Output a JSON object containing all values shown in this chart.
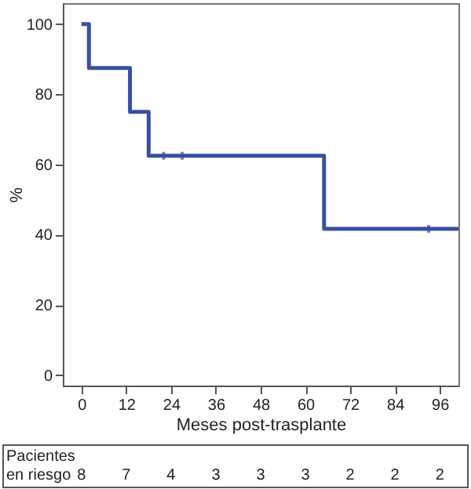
{
  "chart_data": {
    "type": "step",
    "xlabel": "Meses post-trasplante",
    "ylabel": "%",
    "series": [
      {
        "color": "#3a4fa0",
        "x": [
          0,
          2,
          13,
          18,
          65,
          101
        ],
        "values": [
          100,
          87.5,
          75,
          62.5,
          41.7,
          41.7
        ],
        "line_style": "solid",
        "marker": "none"
      },
      {
        "type": "scatter",
        "color": "#3a4fa0",
        "x": [
          22,
          27,
          93
        ],
        "values": [
          62.5,
          62.5,
          41.7
        ],
        "marker": "cross"
      }
    ],
    "xlim": [
      -5,
      101
    ],
    "xticks": [
      0,
      12,
      24,
      36,
      48,
      60,
      72,
      84,
      96
    ],
    "ylim": [
      -3,
      106
    ],
    "yticks": [
      0,
      20,
      40,
      60,
      80,
      100
    ],
    "annotations": [
      "Pacientes en riesgo",
      "8",
      "7",
      "4",
      "3",
      "3",
      "3",
      "2",
      "2",
      "2"
    ]
  }
}
